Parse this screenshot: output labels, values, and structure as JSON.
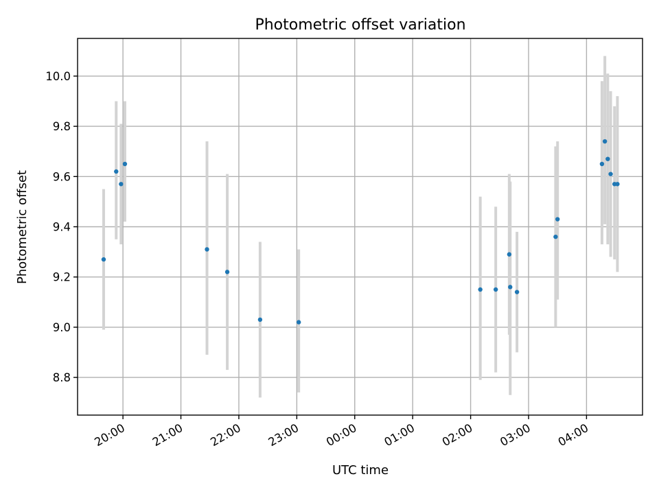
{
  "chart_data": {
    "type": "scatter",
    "title": "Photometric offset variation",
    "xlabel": "UTC time",
    "ylabel": "Photometric offset",
    "x_unit": "UTC time (hours)",
    "xlim": [
      "19:13",
      "28:58"
    ],
    "ylim": [
      8.65,
      10.15
    ],
    "x_ticks": [
      "20:00",
      "21:00",
      "22:00",
      "23:00",
      "00:00",
      "01:00",
      "02:00",
      "03:00",
      "04:00"
    ],
    "y_ticks": [
      "8.8",
      "9.0",
      "9.2",
      "9.4",
      "9.6",
      "9.8",
      "10.0"
    ],
    "grid": true,
    "point_color": "#1f77b4",
    "errorbar_color": "#d3d3d3",
    "points": [
      {
        "t": "19:40",
        "y": 9.27,
        "ylow": 8.99,
        "yhigh": 9.55
      },
      {
        "t": "19:53",
        "y": 9.62,
        "ylow": 9.35,
        "yhigh": 9.9
      },
      {
        "t": "19:58",
        "y": 9.57,
        "ylow": 9.33,
        "yhigh": 9.81
      },
      {
        "t": "20:02",
        "y": 9.65,
        "ylow": 9.42,
        "yhigh": 9.9
      },
      {
        "t": "21:27",
        "y": 9.31,
        "ylow": 8.89,
        "yhigh": 9.74
      },
      {
        "t": "21:48",
        "y": 9.22,
        "ylow": 8.83,
        "yhigh": 9.61
      },
      {
        "t": "22:22",
        "y": 9.03,
        "ylow": 8.72,
        "yhigh": 9.34
      },
      {
        "t": "23:02",
        "y": 9.02,
        "ylow": 8.74,
        "yhigh": 9.31
      },
      {
        "t": "02:10",
        "y": 9.15,
        "ylow": 8.79,
        "yhigh": 9.52
      },
      {
        "t": "02:26",
        "y": 9.15,
        "ylow": 8.82,
        "yhigh": 9.48
      },
      {
        "t": "02:40",
        "y": 9.29,
        "ylow": 8.97,
        "yhigh": 9.61
      },
      {
        "t": "02:41",
        "y": 9.16,
        "ylow": 8.73,
        "yhigh": 9.58
      },
      {
        "t": "02:48",
        "y": 9.14,
        "ylow": 8.9,
        "yhigh": 9.38
      },
      {
        "t": "03:28",
        "y": 9.36,
        "ylow": 9.0,
        "yhigh": 9.72
      },
      {
        "t": "03:30",
        "y": 9.43,
        "ylow": 9.11,
        "yhigh": 9.74
      },
      {
        "t": "04:16",
        "y": 9.65,
        "ylow": 9.33,
        "yhigh": 9.98
      },
      {
        "t": "04:19",
        "y": 9.74,
        "ylow": 9.41,
        "yhigh": 10.08
      },
      {
        "t": "04:22",
        "y": 9.67,
        "ylow": 9.33,
        "yhigh": 10.01
      },
      {
        "t": "04:25",
        "y": 9.61,
        "ylow": 9.28,
        "yhigh": 9.94
      },
      {
        "t": "04:29",
        "y": 9.57,
        "ylow": 9.27,
        "yhigh": 9.88
      },
      {
        "t": "04:32",
        "y": 9.57,
        "ylow": 9.22,
        "yhigh": 9.92
      }
    ]
  }
}
